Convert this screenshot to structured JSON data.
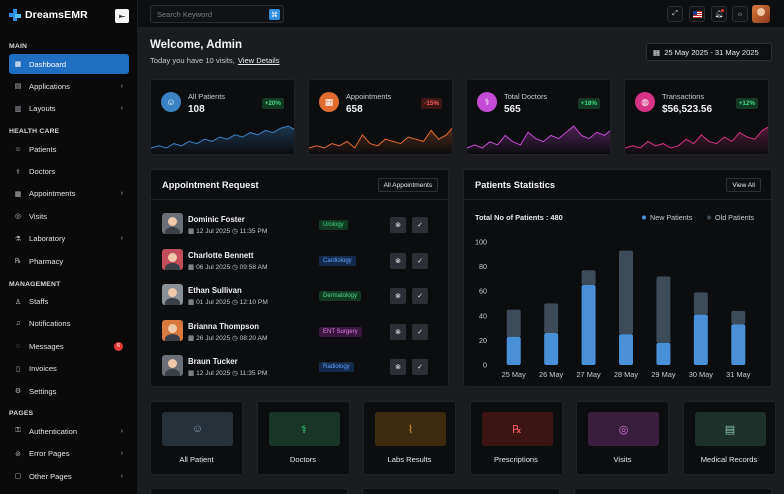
{
  "brand": {
    "name": "DreamsEMR"
  },
  "search": {
    "placeholder": "Search Keyword"
  },
  "sidebar": {
    "sections": [
      {
        "title": "MAIN",
        "items": [
          {
            "label": "Dashboard",
            "icon": "grid-icon",
            "active": true
          },
          {
            "label": "Applications",
            "icon": "apps-icon",
            "chevron": true
          },
          {
            "label": "Layouts",
            "icon": "layout-icon",
            "chevron": true
          }
        ]
      },
      {
        "title": "HEALTH CARE",
        "items": [
          {
            "label": "Patients",
            "icon": "users-icon"
          },
          {
            "label": "Doctors",
            "icon": "stethoscope-icon"
          },
          {
            "label": "Appointments",
            "icon": "calendar-icon",
            "chevron": true
          },
          {
            "label": "Visits",
            "icon": "visit-icon"
          },
          {
            "label": "Laboratory",
            "icon": "flask-icon",
            "chevron": true
          },
          {
            "label": "Pharmacy",
            "icon": "rx-icon"
          }
        ]
      },
      {
        "title": "MANAGEMENT",
        "items": [
          {
            "label": "Staffs",
            "icon": "staff-icon"
          },
          {
            "label": "Notifications",
            "icon": "bell-icon"
          },
          {
            "label": "Messages",
            "icon": "chat-icon",
            "badge": "6"
          },
          {
            "label": "Invoices",
            "icon": "invoice-icon"
          },
          {
            "label": "Settings",
            "icon": "gear-icon"
          }
        ]
      },
      {
        "title": "PAGES",
        "items": [
          {
            "label": "Authentication",
            "icon": "lock-icon",
            "chevron": true
          },
          {
            "label": "Error Pages",
            "icon": "error-icon",
            "chevron": true
          },
          {
            "label": "Other Pages",
            "icon": "pages-icon",
            "chevron": true
          }
        ]
      }
    ]
  },
  "header": {
    "welcome": "Welcome, Admin",
    "subtitle": "Today you have 10 visits,",
    "subtitle_link": "View Details",
    "date_range": "25 May 2025 - 31 May 2025"
  },
  "stats": [
    {
      "label": "All Patients",
      "value": "108",
      "badge": "+20%",
      "trend": "up",
      "color": "#3b82c4",
      "icon": "user-icon",
      "spark": [
        5,
        6,
        5,
        7,
        6,
        8,
        7,
        9,
        8,
        10,
        9,
        11,
        10,
        12,
        11,
        13,
        12,
        14,
        15,
        13
      ]
    },
    {
      "label": "Appointments",
      "value": "658",
      "badge": "-15%",
      "trend": "down",
      "color": "#e06b2e",
      "icon": "calendar-icon",
      "spark": [
        6,
        7,
        6,
        8,
        7,
        9,
        6,
        12,
        8,
        7,
        10,
        9,
        8,
        11,
        10,
        9,
        14,
        10,
        12,
        16
      ]
    },
    {
      "label": "Total Doctors",
      "value": "565",
      "badge": "+18%",
      "trend": "up",
      "color": "#c54bd6",
      "icon": "stethoscope-icon",
      "spark": [
        8,
        9,
        8,
        10,
        9,
        12,
        10,
        9,
        13,
        11,
        10,
        12,
        11,
        13,
        15,
        12,
        11,
        13,
        12,
        14
      ]
    },
    {
      "label": "Transactions",
      "value": "$56,523.56",
      "badge": "+12%",
      "trend": "up",
      "color": "#d63384",
      "icon": "bag-icon",
      "spark": [
        6,
        7,
        6,
        9,
        7,
        8,
        6,
        7,
        10,
        8,
        12,
        9,
        8,
        11,
        9,
        13,
        11,
        10,
        14,
        16
      ]
    }
  ],
  "appointments": {
    "title": "Appointment Request",
    "button": "All Appointments",
    "rows": [
      {
        "name": "Dominic Foster",
        "date": "12 Jul 2025",
        "time": "11:35 PM",
        "dept": "Urology",
        "tag_bg": "#123a22",
        "tag_fg": "#46d98a",
        "ava": "#6b7078"
      },
      {
        "name": "Charlotte Bennett",
        "date": "06 Jul 2025",
        "time": "09:58 AM",
        "dept": "Cardiology",
        "tag_bg": "#142a4a",
        "tag_fg": "#5aa2ff",
        "ava": "#c44d5b"
      },
      {
        "name": "Ethan Sullivan",
        "date": "01 Jul 2025",
        "time": "12:10 PM",
        "dept": "Dermatology",
        "tag_bg": "#123a22",
        "tag_fg": "#46d98a",
        "ava": "#8a9097"
      },
      {
        "name": "Brianna Thompson",
        "date": "26 Jul 2025",
        "time": "08:20 AM",
        "dept": "ENT Surgery",
        "tag_bg": "#3b1640",
        "tag_fg": "#e57ef0",
        "ava": "#d9793f"
      },
      {
        "name": "Braun Tucker",
        "date": "12 Jul 2025",
        "time": "11:35 PM",
        "dept": "Radiology",
        "tag_bg": "#142a4a",
        "tag_fg": "#5aa2ff",
        "ava": "#6b7078"
      }
    ]
  },
  "patients_stats": {
    "title": "Patients Statistics",
    "button": "View All",
    "total_label": "Total No of Patients : 480"
  },
  "chart_data": {
    "type": "bar",
    "stacked": true,
    "categories": [
      "25 May",
      "26 May",
      "27 May",
      "28 May",
      "29 May",
      "30 May",
      "31 May"
    ],
    "series": [
      {
        "name": "New Patients",
        "color": "#4a90d9",
        "values": [
          23,
          26,
          65,
          25,
          18,
          41,
          33
        ]
      },
      {
        "name": "Old Patients",
        "color": "#3d4a58",
        "values": [
          22,
          24,
          12,
          68,
          54,
          18,
          11
        ]
      }
    ],
    "ylim": [
      0,
      100
    ],
    "yticks": [
      0,
      20,
      40,
      60,
      80,
      100
    ],
    "grid": false,
    "legend": "top-right"
  },
  "quick_links": [
    {
      "label": "All Patient",
      "icon": "users-icon",
      "bg": "#26313a",
      "fg": "#8aa3b8"
    },
    {
      "label": "Doctors",
      "icon": "stethoscope-icon",
      "bg": "#173627",
      "fg": "#3ddc84"
    },
    {
      "label": "Labs Results",
      "icon": "test-tube-icon",
      "bg": "#3d2a10",
      "fg": "#f0a030"
    },
    {
      "label": "Prescriptions",
      "icon": "rx-icon",
      "bg": "#3d1414",
      "fg": "#ff5b5b"
    },
    {
      "label": "Visits",
      "icon": "visit-icon",
      "bg": "#3a1e3d",
      "fg": "#d977e0"
    },
    {
      "label": "Medical Records",
      "icon": "document-icon",
      "bg": "#1e302a",
      "fg": "#8fc7b0"
    }
  ]
}
